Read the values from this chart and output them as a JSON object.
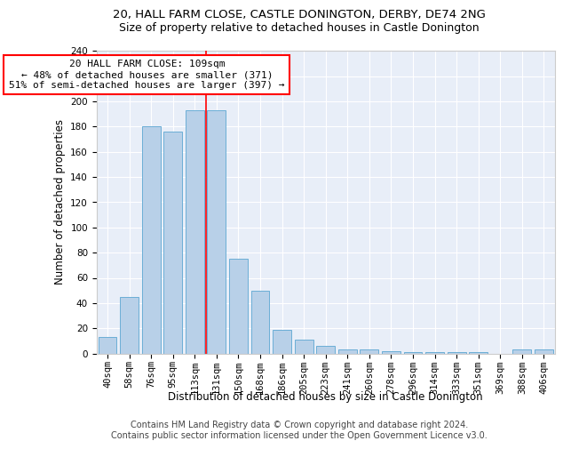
{
  "title1": "20, HALL FARM CLOSE, CASTLE DONINGTON, DERBY, DE74 2NG",
  "title2": "Size of property relative to detached houses in Castle Donington",
  "xlabel": "Distribution of detached houses by size in Castle Donington",
  "ylabel": "Number of detached properties",
  "categories": [
    "40sqm",
    "58sqm",
    "76sqm",
    "95sqm",
    "113sqm",
    "131sqm",
    "150sqm",
    "168sqm",
    "186sqm",
    "205sqm",
    "223sqm",
    "241sqm",
    "260sqm",
    "278sqm",
    "296sqm",
    "314sqm",
    "333sqm",
    "351sqm",
    "369sqm",
    "388sqm",
    "406sqm"
  ],
  "values": [
    13,
    45,
    180,
    176,
    193,
    193,
    75,
    50,
    19,
    11,
    6,
    3,
    3,
    2,
    1,
    1,
    1,
    1,
    0,
    3,
    3
  ],
  "bar_color": "#b8d0e8",
  "bar_edge_color": "#6baed6",
  "bar_width": 0.85,
  "vline_x": 4.5,
  "vline_color": "red",
  "annotation_line1": "20 HALL FARM CLOSE: 109sqm",
  "annotation_line2": "← 48% of detached houses are smaller (371)",
  "annotation_line3": "51% of semi-detached houses are larger (397) →",
  "annotation_box_color": "white",
  "annotation_box_edge_color": "red",
  "ylim": [
    0,
    240
  ],
  "yticks": [
    0,
    20,
    40,
    60,
    80,
    100,
    120,
    140,
    160,
    180,
    200,
    220,
    240
  ],
  "footer1": "Contains HM Land Registry data © Crown copyright and database right 2024.",
  "footer2": "Contains public sector information licensed under the Open Government Licence v3.0.",
  "bg_color": "#e8eef8",
  "title1_fontsize": 9.5,
  "title2_fontsize": 9,
  "xlabel_fontsize": 8.5,
  "ylabel_fontsize": 8.5,
  "tick_fontsize": 7.5,
  "annotation_fontsize": 8,
  "footer_fontsize": 7
}
